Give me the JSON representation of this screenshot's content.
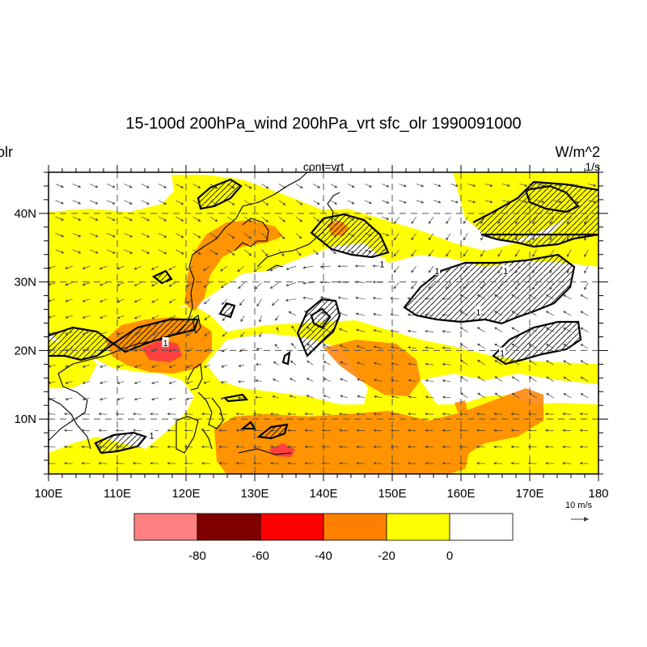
{
  "title": "15-100d 200hPa_wind 200hPa_vrt sfc_olr 1990091000",
  "left_label": "olr",
  "center_label": "cont=vrt",
  "right_units_top": "W/m^2",
  "right_units_bottom": "1/s",
  "map": {
    "lon_range": [
      100,
      180
    ],
    "lat_range": [
      2,
      46
    ],
    "lon_ticks": [
      {
        "value": 100,
        "label": "100E"
      },
      {
        "value": 110,
        "label": "110E"
      },
      {
        "value": 120,
        "label": "120E"
      },
      {
        "value": 130,
        "label": "130E"
      },
      {
        "value": 140,
        "label": "140E"
      },
      {
        "value": 150,
        "label": "150E"
      },
      {
        "value": 160,
        "label": "160E"
      },
      {
        "value": 170,
        "label": "170E"
      },
      {
        "value": 180,
        "label": "180"
      }
    ],
    "lat_ticks": [
      {
        "value": 10,
        "label": "10N"
      },
      {
        "value": 20,
        "label": "20N"
      },
      {
        "value": 30,
        "label": "30N"
      },
      {
        "value": 40,
        "label": "40N"
      }
    ],
    "contour_labels": [
      {
        "lon": 117,
        "lat": 21,
        "text": "1"
      },
      {
        "lon": 148.5,
        "lat": 32.5,
        "text": "1"
      },
      {
        "lon": 156.5,
        "lat": 31.5,
        "text": "1"
      },
      {
        "lon": 166.5,
        "lat": 31.5,
        "text": "1"
      },
      {
        "lon": 162.5,
        "lat": 25.5,
        "text": "1"
      },
      {
        "lon": 166,
        "lat": 19.5,
        "text": "1"
      },
      {
        "lon": 115,
        "lat": 7.5,
        "text": "1"
      }
    ]
  },
  "colorbar": {
    "colors": [
      "#ff8080",
      "#800000",
      "#ff0000",
      "#ff8000",
      "#ffff00",
      "#ffffff"
    ],
    "labels": [
      "-80",
      "-60",
      "-40",
      "-20",
      "0"
    ]
  },
  "reference_vector": {
    "label": "10 m/s"
  },
  "colors": {
    "shade_minus80": "#ff8080",
    "shade_minus40": "#ff8000",
    "shade_minus20": "#ffff00",
    "shade_strong": "#ff4040"
  }
}
